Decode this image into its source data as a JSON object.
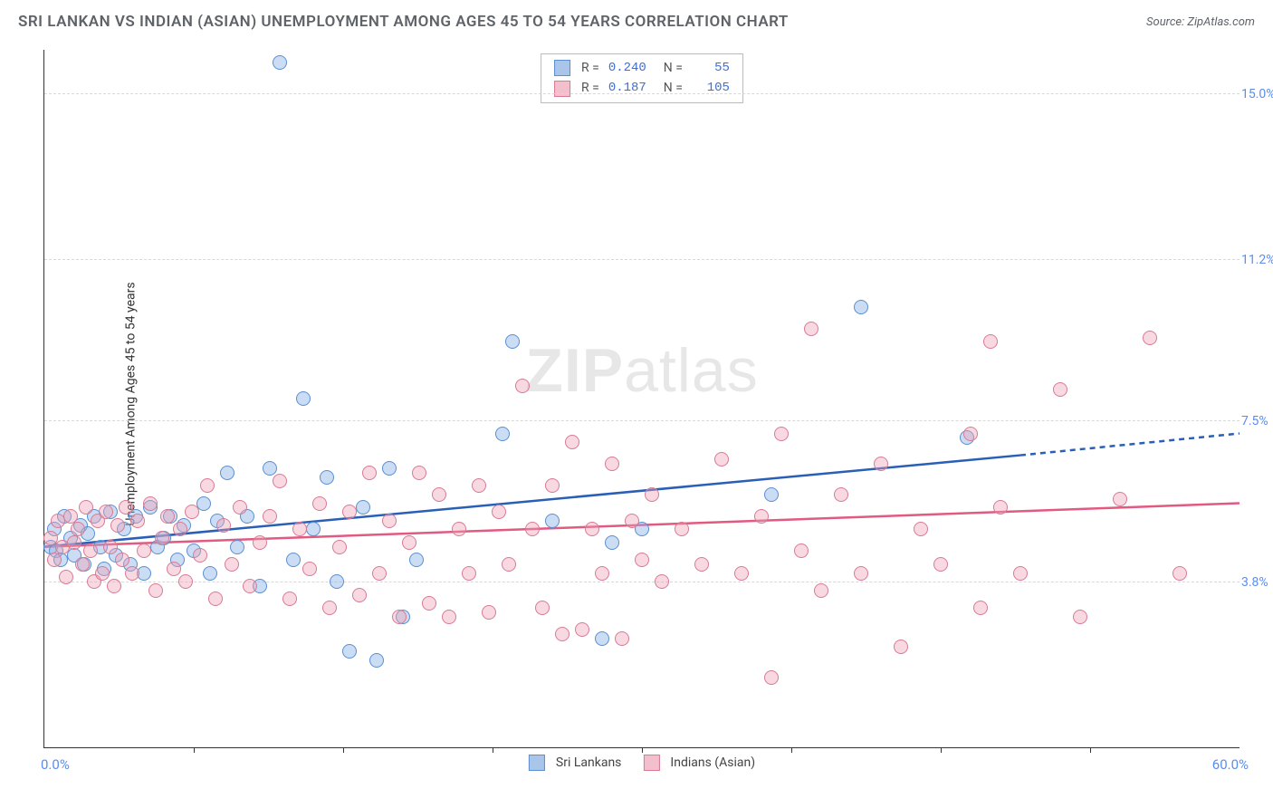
{
  "title": "SRI LANKAN VS INDIAN (ASIAN) UNEMPLOYMENT AMONG AGES 45 TO 54 YEARS CORRELATION CHART",
  "source": "Source: ZipAtlas.com",
  "y_axis_label": "Unemployment Among Ages 45 to 54 years",
  "watermark_a": "ZIP",
  "watermark_b": "atlas",
  "chart": {
    "type": "scatter",
    "background_color": "#ffffff",
    "grid_color": "#d8d8d8",
    "axis_color": "#333333",
    "xlim": [
      0,
      60
    ],
    "ylim": [
      0,
      16
    ],
    "x_ticks": [
      7.5,
      15,
      22.5,
      30,
      37.5,
      45,
      52.5
    ],
    "x_min_label": "0.0%",
    "x_max_label": "60.0%",
    "y_gridlines": [
      {
        "value": 3.8,
        "label": "3.8%"
      },
      {
        "value": 7.5,
        "label": "7.5%"
      },
      {
        "value": 11.2,
        "label": "11.2%"
      },
      {
        "value": 15.0,
        "label": "15.0%"
      }
    ],
    "y_label_color": "#5b8def",
    "marker_radius": 8,
    "marker_border_width": 1.2
  },
  "series": [
    {
      "name": "Sri Lankans",
      "fill_color": "rgba(140,180,230,0.45)",
      "border_color": "#5a8fd0",
      "swatch_fill": "#a9c6ea",
      "swatch_border": "#5a8fd0",
      "line_color": "#2a5fb8",
      "stats": {
        "R": "0.240",
        "N": "55"
      },
      "trend": {
        "x1": 0,
        "y1": 4.6,
        "x2": 49,
        "y2": 6.7,
        "dash_to_x": 60,
        "dash_to_y": 7.2
      },
      "points": [
        [
          0.3,
          4.6
        ],
        [
          0.5,
          5.0
        ],
        [
          0.6,
          4.5
        ],
        [
          0.8,
          4.3
        ],
        [
          1.0,
          5.3
        ],
        [
          1.3,
          4.8
        ],
        [
          1.5,
          4.4
        ],
        [
          1.8,
          5.1
        ],
        [
          2.0,
          4.2
        ],
        [
          2.2,
          4.9
        ],
        [
          2.5,
          5.3
        ],
        [
          2.8,
          4.6
        ],
        [
          3.0,
          4.1
        ],
        [
          3.3,
          5.4
        ],
        [
          3.6,
          4.4
        ],
        [
          4.0,
          5.0
        ],
        [
          4.3,
          4.2
        ],
        [
          4.6,
          5.3
        ],
        [
          5.0,
          4.0
        ],
        [
          5.3,
          5.5
        ],
        [
          5.7,
          4.6
        ],
        [
          6.0,
          4.8
        ],
        [
          6.3,
          5.3
        ],
        [
          6.7,
          4.3
        ],
        [
          7.0,
          5.1
        ],
        [
          7.5,
          4.5
        ],
        [
          8.0,
          5.6
        ],
        [
          8.3,
          4.0
        ],
        [
          8.7,
          5.2
        ],
        [
          9.2,
          6.3
        ],
        [
          9.7,
          4.6
        ],
        [
          10.2,
          5.3
        ],
        [
          10.8,
          3.7
        ],
        [
          11.3,
          6.4
        ],
        [
          11.8,
          15.7
        ],
        [
          12.5,
          4.3
        ],
        [
          13.0,
          8.0
        ],
        [
          13.5,
          5.0
        ],
        [
          14.2,
          6.2
        ],
        [
          14.7,
          3.8
        ],
        [
          15.3,
          2.2
        ],
        [
          16.0,
          5.5
        ],
        [
          16.7,
          2.0
        ],
        [
          17.3,
          6.4
        ],
        [
          18.0,
          3.0
        ],
        [
          18.7,
          4.3
        ],
        [
          23.0,
          7.2
        ],
        [
          23.5,
          9.3
        ],
        [
          25.5,
          5.2
        ],
        [
          28.0,
          2.5
        ],
        [
          28.5,
          4.7
        ],
        [
          30.0,
          5.0
        ],
        [
          36.5,
          5.8
        ],
        [
          41.0,
          10.1
        ],
        [
          46.3,
          7.1
        ]
      ]
    },
    {
      "name": "Indians (Asian)",
      "fill_color": "rgba(240,160,180,0.40)",
      "border_color": "#d87a94",
      "swatch_fill": "#f4bfcc",
      "swatch_border": "#d87a94",
      "line_color": "#e05a82",
      "stats": {
        "R": "0.187",
        "N": "105"
      },
      "trend": {
        "x1": 0,
        "y1": 4.6,
        "x2": 60,
        "y2": 5.6
      },
      "points": [
        [
          0.3,
          4.8
        ],
        [
          0.5,
          4.3
        ],
        [
          0.7,
          5.2
        ],
        [
          0.9,
          4.6
        ],
        [
          1.1,
          3.9
        ],
        [
          1.3,
          5.3
        ],
        [
          1.5,
          4.7
        ],
        [
          1.7,
          5.0
        ],
        [
          1.9,
          4.2
        ],
        [
          2.1,
          5.5
        ],
        [
          2.3,
          4.5
        ],
        [
          2.5,
          3.8
        ],
        [
          2.7,
          5.2
        ],
        [
          2.9,
          4.0
        ],
        [
          3.1,
          5.4
        ],
        [
          3.3,
          4.6
        ],
        [
          3.5,
          3.7
        ],
        [
          3.7,
          5.1
        ],
        [
          3.9,
          4.3
        ],
        [
          4.1,
          5.5
        ],
        [
          4.4,
          4.0
        ],
        [
          4.7,
          5.2
        ],
        [
          5.0,
          4.5
        ],
        [
          5.3,
          5.6
        ],
        [
          5.6,
          3.6
        ],
        [
          5.9,
          4.8
        ],
        [
          6.2,
          5.3
        ],
        [
          6.5,
          4.1
        ],
        [
          6.8,
          5.0
        ],
        [
          7.1,
          3.8
        ],
        [
          7.4,
          5.4
        ],
        [
          7.8,
          4.4
        ],
        [
          8.2,
          6.0
        ],
        [
          8.6,
          3.4
        ],
        [
          9.0,
          5.1
        ],
        [
          9.4,
          4.2
        ],
        [
          9.8,
          5.5
        ],
        [
          10.3,
          3.7
        ],
        [
          10.8,
          4.7
        ],
        [
          11.3,
          5.3
        ],
        [
          11.8,
          6.1
        ],
        [
          12.3,
          3.4
        ],
        [
          12.8,
          5.0
        ],
        [
          13.3,
          4.1
        ],
        [
          13.8,
          5.6
        ],
        [
          14.3,
          3.2
        ],
        [
          14.8,
          4.6
        ],
        [
          15.3,
          5.4
        ],
        [
          15.8,
          3.5
        ],
        [
          16.3,
          6.3
        ],
        [
          16.8,
          4.0
        ],
        [
          17.3,
          5.2
        ],
        [
          17.8,
          3.0
        ],
        [
          18.3,
          4.7
        ],
        [
          18.8,
          6.3
        ],
        [
          19.3,
          3.3
        ],
        [
          19.8,
          5.8
        ],
        [
          20.3,
          3.0
        ],
        [
          20.8,
          5.0
        ],
        [
          21.3,
          4.0
        ],
        [
          21.8,
          6.0
        ],
        [
          22.3,
          3.1
        ],
        [
          22.8,
          5.4
        ],
        [
          23.3,
          4.2
        ],
        [
          24.0,
          8.3
        ],
        [
          24.5,
          5.0
        ],
        [
          25.0,
          3.2
        ],
        [
          25.5,
          6.0
        ],
        [
          26.0,
          2.6
        ],
        [
          26.5,
          7.0
        ],
        [
          27.0,
          2.7
        ],
        [
          27.5,
          5.0
        ],
        [
          28.0,
          4.0
        ],
        [
          28.5,
          6.5
        ],
        [
          29.0,
          2.5
        ],
        [
          29.5,
          5.2
        ],
        [
          30.0,
          4.3
        ],
        [
          30.5,
          5.8
        ],
        [
          31.0,
          3.8
        ],
        [
          32.0,
          5.0
        ],
        [
          33.0,
          4.2
        ],
        [
          34.0,
          6.6
        ],
        [
          35.0,
          4.0
        ],
        [
          36.0,
          5.3
        ],
        [
          36.5,
          1.6
        ],
        [
          37.0,
          7.2
        ],
        [
          38.0,
          4.5
        ],
        [
          38.5,
          9.6
        ],
        [
          39.0,
          3.6
        ],
        [
          40.0,
          5.8
        ],
        [
          41.0,
          4.0
        ],
        [
          42.0,
          6.5
        ],
        [
          43.0,
          2.3
        ],
        [
          44.0,
          5.0
        ],
        [
          45.0,
          4.2
        ],
        [
          46.5,
          7.2
        ],
        [
          47.0,
          3.2
        ],
        [
          47.5,
          9.3
        ],
        [
          48.0,
          5.5
        ],
        [
          49.0,
          4.0
        ],
        [
          51.0,
          8.2
        ],
        [
          52.0,
          3.0
        ],
        [
          54.0,
          5.7
        ],
        [
          55.5,
          9.4
        ],
        [
          57.0,
          4.0
        ]
      ]
    }
  ],
  "bottom_legend": [
    {
      "label": "Sri Lankans",
      "fill": "#a9c6ea",
      "border": "#5a8fd0"
    },
    {
      "label": "Indians (Asian)",
      "fill": "#f4bfcc",
      "border": "#d87a94"
    }
  ]
}
